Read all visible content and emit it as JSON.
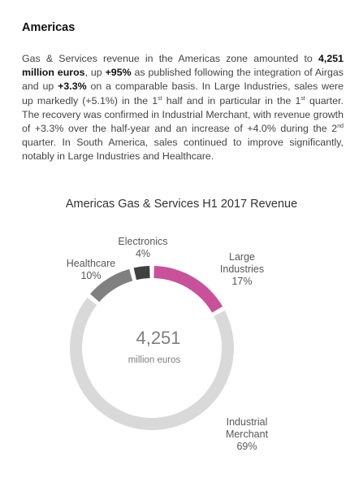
{
  "section": {
    "heading": "Americas",
    "paragraph": {
      "t1": "Gas & Services revenue in the Americas zone amounted to ",
      "b1": "4,251 million euros",
      "t2": ", up ",
      "b2": "+95%",
      "t3": " as published following the integration of Airgas and up ",
      "b3": "+3.3%",
      "t4": " on a comparable basis. In Large Industries, sales were up markedly (+5.1%) in the 1",
      "s1": "st",
      "t5": " half and in particular in the 1",
      "s2": "st",
      "t6": " quarter. The recovery was confirmed in Industrial Merchant, with revenue growth of +3.3% over the half-year and an increase of +4.0% during the 2",
      "s3": "nd",
      "t7": " quarter. In South America, sales continued to improve significantly, notably in Large Industries and Healthcare."
    }
  },
  "chart_data": {
    "type": "pie",
    "title": "Americas Gas & Services H1 2017 Revenue",
    "center_value": "4,251",
    "center_unit": "million euros",
    "slices": [
      {
        "name": "Large Industries",
        "label_lines": [
          "Large",
          "Industries"
        ],
        "value": 17,
        "value_label": "17%",
        "color": "#c9519a"
      },
      {
        "name": "Industrial Merchant",
        "label_lines": [
          "Industrial",
          "Merchant"
        ],
        "value": 69,
        "value_label": "69%",
        "color": "#d9d9d9"
      },
      {
        "name": "Healthcare",
        "label_lines": [
          "Healthcare"
        ],
        "value": 10,
        "value_label": "10%",
        "color": "#808080"
      },
      {
        "name": "Electronics",
        "label_lines": [
          "Electronics"
        ],
        "value": 4,
        "value_label": "4%",
        "color": "#404040"
      }
    ]
  }
}
